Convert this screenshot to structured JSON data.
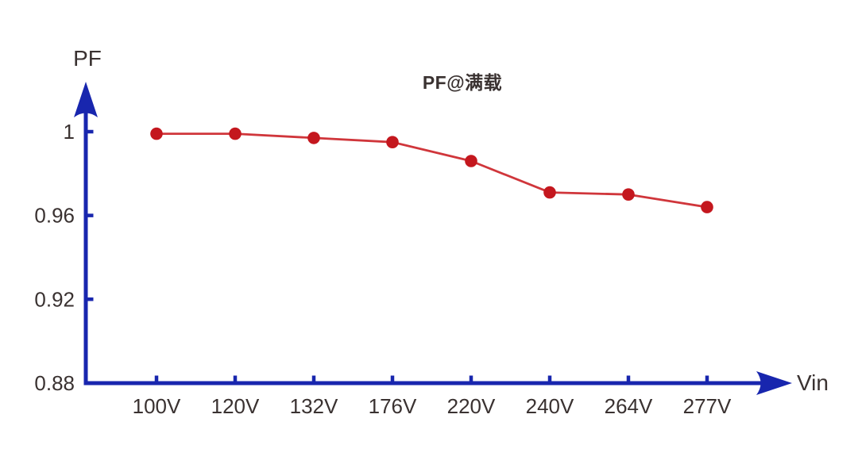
{
  "chart_data": {
    "type": "line",
    "title": "PF@满载",
    "xlabel": "Vin",
    "ylabel": "PF",
    "categories": [
      "100V",
      "120V",
      "132V",
      "176V",
      "220V",
      "240V",
      "264V",
      "277V"
    ],
    "series": [
      {
        "name": "PF",
        "values": [
          0.999,
          0.999,
          0.997,
          0.995,
          0.986,
          0.971,
          0.97,
          0.964
        ]
      }
    ],
    "y_ticks": [
      {
        "label": "1",
        "value": 1.0,
        "mark": true
      },
      {
        "label": "0.96",
        "value": 0.96,
        "mark": true
      },
      {
        "label": "0.92",
        "value": 0.92,
        "mark": true
      },
      {
        "label": "0.88",
        "value": 0.88,
        "mark": false
      }
    ],
    "ylim": [
      0.88,
      1.01
    ],
    "grid": false,
    "legend": "none",
    "colors": {
      "axis": "#1826ae",
      "line": "#d0363b",
      "marker": "#c4171e",
      "text": "#3a3231",
      "background": "#ffffff"
    }
  }
}
